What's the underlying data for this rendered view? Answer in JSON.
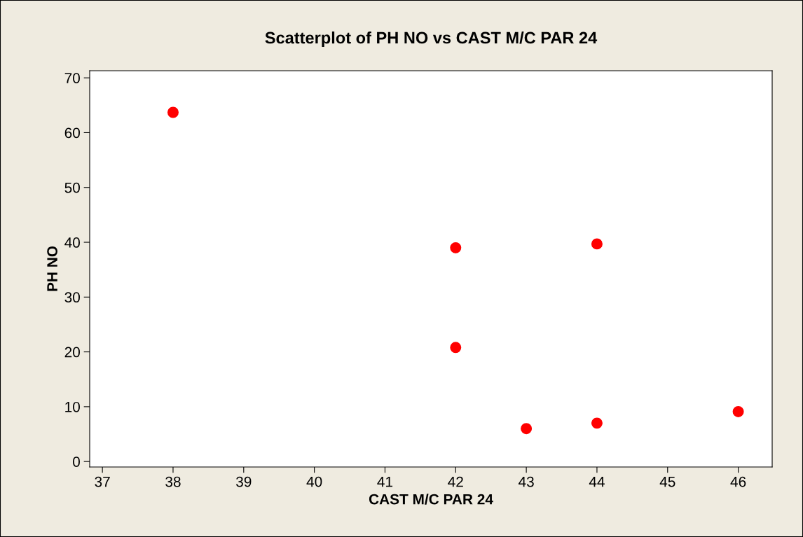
{
  "chart_data": {
    "type": "scatter",
    "title": "Scatterplot of PH NO vs CAST M/C PAR 24",
    "xlabel": "CAST M/C PAR 24",
    "ylabel": "PH NO",
    "x": [
      38,
      42,
      42,
      43,
      44,
      44,
      46
    ],
    "series": [
      {
        "color": "#ff0000",
        "values": [
          63.7,
          39,
          20.8,
          6,
          39.7,
          7,
          9.1
        ]
      }
    ],
    "marker": "circle",
    "xlim": [
      36.82,
      46.48
    ],
    "ylim": [
      -1,
      71.3
    ],
    "xticks": [
      37,
      38,
      39,
      40,
      41,
      42,
      43,
      44,
      45,
      46
    ],
    "yticks": [
      0,
      10,
      20,
      30,
      40,
      50,
      60,
      70
    ],
    "grid": false,
    "legend": false
  }
}
